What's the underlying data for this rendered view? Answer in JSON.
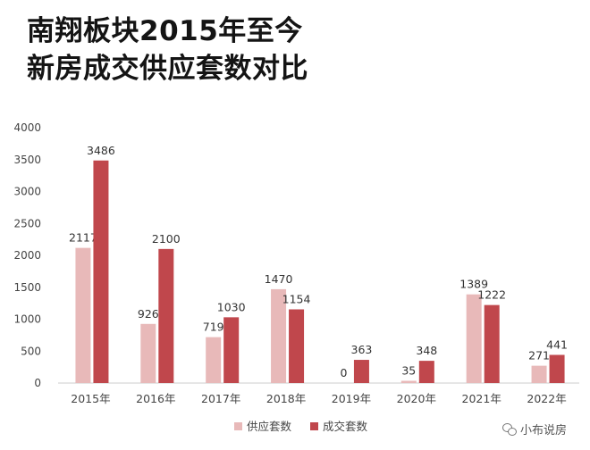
{
  "title_lines": [
    "南翔板块2015年至今",
    "新房成交供应套数对比"
  ],
  "watermark": {
    "icon": "wechat-icon",
    "text": "小布说房"
  },
  "chart_data": {
    "type": "bar",
    "title": "南翔板块2015年至今新房成交供应套数对比",
    "categories": [
      "2015年",
      "2016年",
      "2017年",
      "2018年",
      "2019年",
      "2020年",
      "2021年",
      "2022年"
    ],
    "series": [
      {
        "name": "供应套数",
        "color": "#e8b9b9",
        "values": [
          2117,
          926,
          719,
          1470,
          0,
          35,
          1389,
          271
        ]
      },
      {
        "name": "成交套数",
        "color": "#c0474c",
        "values": [
          3486,
          2100,
          1030,
          1154,
          363,
          348,
          1222,
          441
        ]
      }
    ],
    "ylim": [
      0,
      4000
    ],
    "yticks": [
      0,
      500,
      1000,
      1500,
      2000,
      2500,
      3000,
      3500,
      4000
    ],
    "grid": false,
    "legend": "bottom-center",
    "data_labels": true
  }
}
